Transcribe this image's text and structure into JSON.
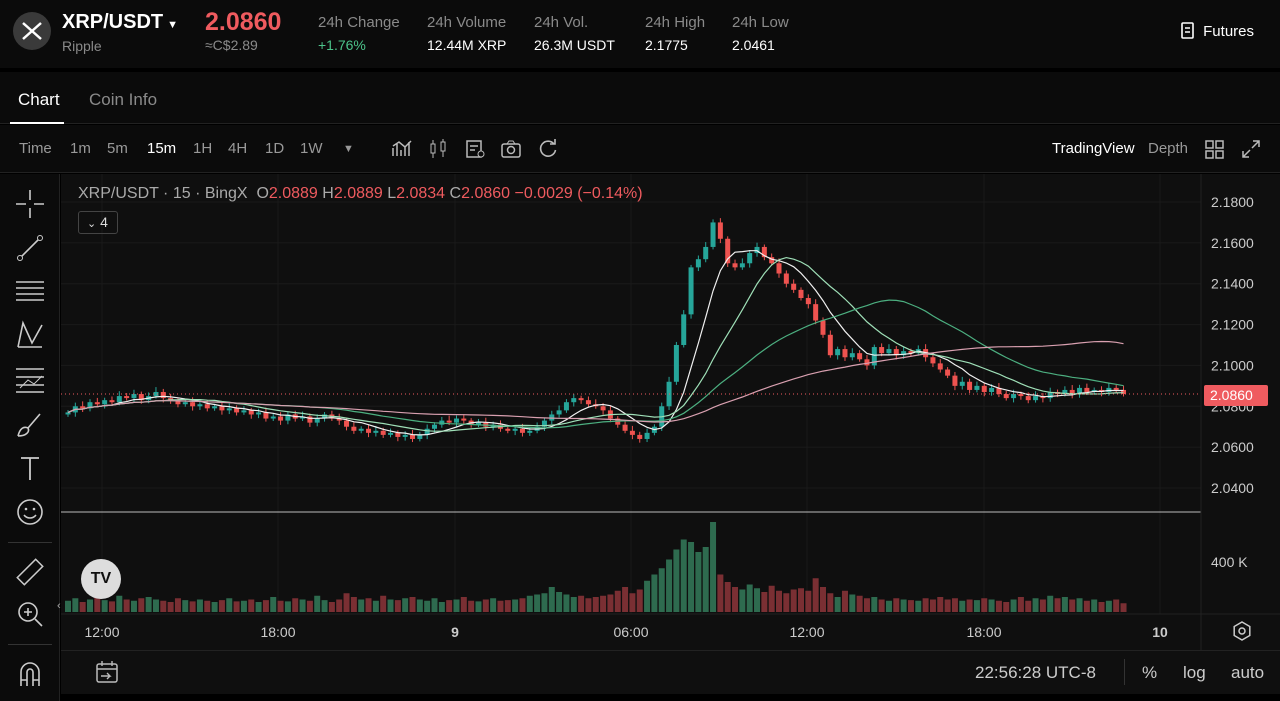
{
  "header": {
    "pair": "XRP/USDT",
    "name": "Ripple",
    "price": "2.0860",
    "cad": "≈C$2.89",
    "stats": [
      {
        "label": "24h Change",
        "value": "+1.76%"
      },
      {
        "label": "24h Volume",
        "value": "12.44M XRP"
      },
      {
        "label": "24h Vol.",
        "value": "26.3M USDT"
      },
      {
        "label": "24h High",
        "value": "2.1775"
      },
      {
        "label": "24h Low",
        "value": "2.0461"
      }
    ],
    "futures": "Futures"
  },
  "tabs": [
    "Chart",
    "Coin Info"
  ],
  "toolbar": {
    "intervals": [
      "Time",
      "1m",
      "5m",
      "15m",
      "1H",
      "4H",
      "1D",
      "1W"
    ],
    "active": "15m",
    "tradingview": "TradingView",
    "depth": "Depth"
  },
  "legend": {
    "title": "XRP/USDT · 15 · BingX",
    "o_label": "O",
    "o": "2.0889",
    "h_label": "H",
    "h": "2.0889",
    "l_label": "L",
    "l": "2.0834",
    "c_label": "C",
    "c": "2.0860",
    "chg": "−0.0029 (−0.14%)",
    "indicators": "4"
  },
  "bottom": {
    "clock": "22:56:28 UTC-8",
    "pct": "%",
    "log": "log",
    "auto": "auto"
  },
  "colors": {
    "up": "#26a69a",
    "down": "#ef5350",
    "accent": "#ef5b5f"
  },
  "chart_data": {
    "type": "candlestick",
    "title": "XRP/USDT · 15 · BingX",
    "yticks": [
      "2.1800",
      "2.1600",
      "2.1400",
      "2.1200",
      "2.1000",
      "2.0800",
      "2.0600",
      "2.0400"
    ],
    "ylim": [
      2.04,
      2.18
    ],
    "vol_tick": "400 K",
    "last_price": "2.0860",
    "xticks": [
      "12:00",
      "18:00",
      "9",
      "06:00",
      "12:00",
      "18:00",
      "10"
    ],
    "ma_periods": [
      7,
      14,
      30,
      60
    ],
    "ma_colors": [
      "#f0f0f0",
      "#9fe0b8",
      "#4caf80",
      "#d9a0b0"
    ],
    "close": [
      2.077,
      2.08,
      2.079,
      2.082,
      2.081,
      2.083,
      2.082,
      2.085,
      2.084,
      2.086,
      2.083,
      2.085,
      2.087,
      2.084,
      2.083,
      2.081,
      2.082,
      2.08,
      2.081,
      2.079,
      2.08,
      2.078,
      2.079,
      2.077,
      2.078,
      2.076,
      2.077,
      2.074,
      2.075,
      2.073,
      2.076,
      2.074,
      2.075,
      2.072,
      2.074,
      2.076,
      2.074,
      2.073,
      2.07,
      2.068,
      2.069,
      2.067,
      2.068,
      2.066,
      2.067,
      2.065,
      2.066,
      2.064,
      2.066,
      2.069,
      2.071,
      2.073,
      2.072,
      2.074,
      2.073,
      2.071,
      2.072,
      2.07,
      2.071,
      2.069,
      2.068,
      2.069,
      2.067,
      2.068,
      2.07,
      2.073,
      2.076,
      2.078,
      2.082,
      2.084,
      2.083,
      2.081,
      2.08,
      2.078,
      2.074,
      2.071,
      2.068,
      2.066,
      2.064,
      2.067,
      2.07,
      2.08,
      2.092,
      2.11,
      2.125,
      2.148,
      2.152,
      2.158,
      2.17,
      2.162,
      2.15,
      2.148,
      2.15,
      2.155,
      2.158,
      2.153,
      2.15,
      2.145,
      2.14,
      2.137,
      2.133,
      2.13,
      2.122,
      2.115,
      2.105,
      2.108,
      2.104,
      2.106,
      2.103,
      2.1,
      2.109,
      2.106,
      2.108,
      2.105,
      2.107,
      2.106,
      2.108,
      2.104,
      2.101,
      2.098,
      2.095,
      2.09,
      2.092,
      2.088,
      2.09,
      2.087,
      2.089,
      2.086,
      2.084,
      2.086,
      2.085,
      2.083,
      2.085,
      2.084,
      2.087,
      2.086,
      2.088,
      2.086,
      2.089,
      2.087,
      2.088,
      2.087,
      2.089,
      2.088,
      2.086
    ],
    "volume_k": [
      90,
      110,
      80,
      100,
      120,
      95,
      85,
      130,
      100,
      90,
      110,
      120,
      100,
      90,
      80,
      110,
      95,
      85,
      100,
      90,
      80,
      95,
      110,
      85,
      90,
      100,
      80,
      95,
      120,
      90,
      85,
      110,
      100,
      90,
      130,
      95,
      80,
      100,
      150,
      120,
      100,
      110,
      90,
      130,
      100,
      95,
      110,
      120,
      100,
      90,
      110,
      80,
      95,
      100,
      120,
      90,
      85,
      100,
      110,
      90,
      95,
      100,
      110,
      130,
      140,
      150,
      200,
      160,
      140,
      120,
      130,
      110,
      120,
      130,
      140,
      170,
      200,
      150,
      180,
      250,
      300,
      350,
      420,
      500,
      580,
      560,
      480,
      520,
      720,
      300,
      240,
      200,
      180,
      220,
      190,
      160,
      210,
      170,
      150,
      180,
      190,
      170,
      270,
      200,
      150,
      120,
      170,
      140,
      130,
      110,
      120,
      100,
      90,
      110,
      100,
      95,
      90,
      110,
      100,
      120,
      100,
      110,
      90,
      100,
      95,
      110,
      100,
      90,
      80,
      100,
      120,
      90,
      110,
      100,
      130,
      110,
      120,
      100,
      110,
      90,
      100,
      80,
      90,
      100,
      70
    ]
  }
}
